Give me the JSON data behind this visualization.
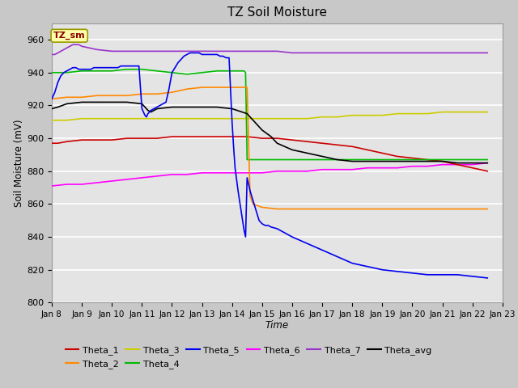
{
  "title": "TZ Soil Moisture",
  "xlabel": "Time",
  "ylabel": "Soil Moisture (mV)",
  "ylim": [
    800,
    970
  ],
  "yticks": [
    800,
    820,
    840,
    860,
    880,
    900,
    920,
    940,
    960
  ],
  "xtick_labels": [
    "Jan 8",
    "Jan 9",
    "Jan 10",
    "Jan 11",
    "Jan 12",
    "Jan 13",
    "Jan 14",
    "Jan 15",
    "Jan 16",
    "Jan 17",
    "Jan 18",
    "Jan 19",
    "Jan 20",
    "Jan 21",
    "Jan 22",
    "Jan 23"
  ],
  "legend_label_box": "TZ_sm",
  "colors": {
    "Theta_1": "#cc0000",
    "Theta_2": "#ff8800",
    "Theta_3": "#cccc00",
    "Theta_4": "#00bb00",
    "Theta_5": "#0000ee",
    "Theta_6": "#ff00ff",
    "Theta_7": "#9933cc",
    "Theta_avg": "#000000"
  },
  "series": {
    "Theta_1": {
      "x": [
        8.0,
        8.2,
        8.5,
        9.0,
        9.5,
        10.0,
        10.5,
        11.0,
        11.5,
        12.0,
        12.5,
        13.0,
        13.5,
        14.0,
        14.5,
        15.0,
        15.5,
        16.0,
        16.5,
        17.0,
        17.5,
        18.0,
        18.5,
        19.0,
        19.5,
        20.0,
        20.5,
        21.0,
        21.5,
        22.0,
        22.5
      ],
      "y": [
        897,
        897,
        898,
        899,
        899,
        899,
        900,
        900,
        900,
        901,
        901,
        901,
        901,
        901,
        901,
        900,
        900,
        899,
        898,
        897,
        896,
        895,
        893,
        891,
        889,
        888,
        887,
        886,
        884,
        882,
        880
      ]
    },
    "Theta_2": {
      "x": [
        8.0,
        8.5,
        9.0,
        9.5,
        10.0,
        10.5,
        11.0,
        11.5,
        12.0,
        12.5,
        13.0,
        13.5,
        14.0,
        14.3,
        14.5,
        14.6,
        14.7,
        15.0,
        15.5,
        16.0,
        16.5,
        17.0,
        17.5,
        18.0,
        18.5,
        19.0,
        19.5,
        20.0,
        20.5,
        21.0,
        21.5,
        22.0,
        22.5
      ],
      "y": [
        924,
        925,
        925,
        926,
        926,
        926,
        927,
        927,
        928,
        930,
        931,
        931,
        931,
        931,
        931,
        865,
        860,
        858,
        857,
        857,
        857,
        857,
        857,
        857,
        857,
        857,
        857,
        857,
        857,
        857,
        857,
        857,
        857
      ]
    },
    "Theta_3": {
      "x": [
        8.0,
        8.5,
        9.0,
        9.5,
        10.0,
        10.5,
        11.0,
        11.5,
        12.0,
        12.5,
        13.0,
        13.5,
        14.0,
        14.5,
        15.0,
        15.5,
        16.0,
        16.5,
        17.0,
        17.5,
        18.0,
        18.5,
        19.0,
        19.5,
        20.0,
        20.5,
        21.0,
        21.5,
        22.0,
        22.5
      ],
      "y": [
        911,
        911,
        912,
        912,
        912,
        912,
        912,
        912,
        912,
        912,
        912,
        912,
        912,
        912,
        912,
        912,
        912,
        912,
        913,
        913,
        914,
        914,
        914,
        915,
        915,
        915,
        916,
        916,
        916,
        916
      ]
    },
    "Theta_4": {
      "x": [
        8.0,
        8.5,
        9.0,
        9.5,
        10.0,
        10.5,
        11.0,
        11.5,
        12.0,
        12.5,
        13.0,
        13.5,
        14.0,
        14.2,
        14.4,
        14.45,
        14.5,
        14.6,
        15.0,
        15.5,
        16.0,
        16.5,
        17.0,
        17.5,
        18.0,
        18.5,
        19.0,
        19.5,
        20.0,
        20.5,
        21.0,
        21.5,
        22.0,
        22.5
      ],
      "y": [
        940,
        940,
        941,
        941,
        941,
        942,
        942,
        941,
        940,
        939,
        940,
        941,
        941,
        941,
        941,
        940,
        887,
        887,
        887,
        887,
        887,
        887,
        887,
        887,
        887,
        887,
        887,
        887,
        887,
        887,
        887,
        887,
        887,
        887
      ]
    },
    "Theta_5": {
      "x": [
        8.0,
        8.05,
        8.1,
        8.15,
        8.2,
        8.3,
        8.4,
        8.5,
        8.6,
        8.7,
        8.8,
        8.9,
        9.0,
        9.1,
        9.2,
        9.3,
        9.4,
        9.5,
        9.6,
        9.7,
        9.8,
        9.9,
        10.0,
        10.1,
        10.2,
        10.3,
        10.4,
        10.5,
        10.6,
        10.7,
        10.8,
        10.9,
        11.0,
        11.05,
        11.1,
        11.15,
        11.2,
        11.3,
        11.4,
        11.5,
        11.6,
        11.7,
        11.8,
        11.9,
        12.0,
        12.1,
        12.2,
        12.3,
        12.4,
        12.5,
        12.6,
        12.7,
        12.8,
        12.9,
        13.0,
        13.1,
        13.2,
        13.3,
        13.4,
        13.5,
        13.6,
        13.7,
        13.8,
        13.9,
        14.0,
        14.05,
        14.1,
        14.15,
        14.2,
        14.25,
        14.3,
        14.35,
        14.4,
        14.45,
        14.5,
        14.55,
        14.6,
        14.7,
        14.8,
        14.9,
        15.0,
        15.1,
        15.2,
        15.3,
        15.5,
        16.0,
        16.5,
        17.0,
        17.5,
        18.0,
        18.5,
        19.0,
        19.5,
        20.0,
        20.5,
        21.0,
        21.5,
        22.0,
        22.5
      ],
      "y": [
        924,
        926,
        928,
        931,
        934,
        938,
        940,
        941,
        942,
        943,
        943,
        942,
        942,
        942,
        942,
        942,
        943,
        943,
        943,
        943,
        943,
        943,
        943,
        943,
        943,
        944,
        944,
        944,
        944,
        944,
        944,
        944,
        918,
        916,
        914,
        913,
        915,
        917,
        918,
        919,
        920,
        921,
        922,
        930,
        940,
        943,
        946,
        948,
        950,
        951,
        952,
        952,
        952,
        952,
        951,
        951,
        951,
        951,
        951,
        951,
        950,
        950,
        949,
        949,
        910,
        895,
        882,
        875,
        868,
        862,
        856,
        850,
        844,
        840,
        876,
        872,
        868,
        862,
        856,
        850,
        848,
        847,
        847,
        846,
        845,
        840,
        836,
        832,
        828,
        824,
        822,
        820,
        819,
        818,
        817,
        817,
        817,
        816,
        815
      ]
    },
    "Theta_6": {
      "x": [
        8.0,
        8.5,
        9.0,
        9.5,
        10.0,
        10.5,
        11.0,
        11.5,
        12.0,
        12.5,
        13.0,
        13.5,
        14.0,
        14.5,
        15.0,
        15.5,
        16.0,
        16.5,
        17.0,
        17.5,
        18.0,
        18.5,
        19.0,
        19.5,
        20.0,
        20.5,
        21.0,
        21.5,
        22.0,
        22.5
      ],
      "y": [
        871,
        872,
        872,
        873,
        874,
        875,
        876,
        877,
        878,
        878,
        879,
        879,
        879,
        879,
        879,
        880,
        880,
        880,
        881,
        881,
        881,
        882,
        882,
        882,
        883,
        883,
        884,
        884,
        884,
        885
      ]
    },
    "Theta_7": {
      "x": [
        8.0,
        8.1,
        8.2,
        8.3,
        8.4,
        8.5,
        8.6,
        8.7,
        8.8,
        8.9,
        9.0,
        9.5,
        10.0,
        10.5,
        11.0,
        11.5,
        12.0,
        12.5,
        13.0,
        13.5,
        14.0,
        14.5,
        15.0,
        15.5,
        16.0,
        16.5,
        17.0,
        17.5,
        18.0,
        18.5,
        19.0,
        19.5,
        20.0,
        20.5,
        21.0,
        21.5,
        22.0,
        22.5
      ],
      "y": [
        951,
        951,
        952,
        953,
        954,
        955,
        956,
        957,
        957,
        957,
        956,
        954,
        953,
        953,
        953,
        953,
        953,
        953,
        953,
        953,
        953,
        953,
        953,
        953,
        952,
        952,
        952,
        952,
        952,
        952,
        952,
        952,
        952,
        952,
        952,
        952,
        952,
        952
      ]
    },
    "Theta_avg": {
      "x": [
        8.0,
        8.2,
        8.5,
        9.0,
        9.5,
        10.0,
        10.5,
        11.0,
        11.1,
        11.2,
        11.3,
        11.5,
        12.0,
        12.5,
        13.0,
        13.5,
        14.0,
        14.5,
        15.0,
        15.3,
        15.5,
        16.0,
        16.5,
        17.0,
        17.5,
        18.0,
        18.5,
        19.0,
        19.5,
        20.0,
        20.5,
        21.0,
        21.5,
        22.0,
        22.5
      ],
      "y": [
        918,
        919,
        921,
        922,
        922,
        922,
        922,
        921,
        919,
        917,
        916,
        918,
        919,
        919,
        919,
        919,
        918,
        915,
        905,
        901,
        897,
        893,
        891,
        889,
        887,
        886,
        886,
        886,
        886,
        886,
        886,
        886,
        885,
        885,
        885
      ]
    }
  }
}
